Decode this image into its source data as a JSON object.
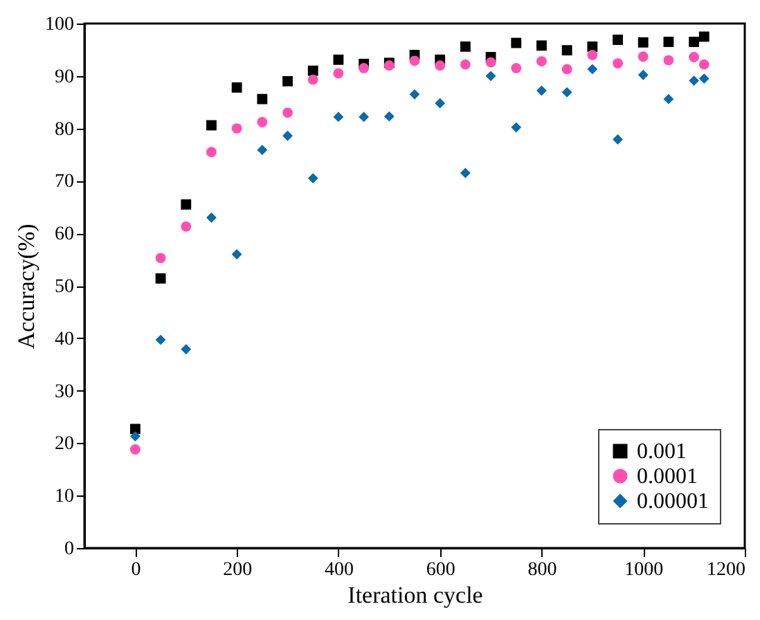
{
  "chart_data": {
    "type": "scatter",
    "xlabel": "Iteration cycle",
    "ylabel": "Accuracy(%)",
    "x": [
      0,
      50,
      100,
      150,
      200,
      250,
      300,
      350,
      400,
      450,
      500,
      550,
      600,
      650,
      700,
      750,
      800,
      850,
      900,
      950,
      1000,
      1050,
      1100,
      1120
    ],
    "series": [
      {
        "name": "0.001",
        "color": "#000000",
        "marker": "square",
        "values": [
          22.7,
          51.4,
          65.5,
          80.6,
          87.8,
          85.6,
          89,
          91,
          93.1,
          92.3,
          92.5,
          94,
          93.1,
          95.6,
          93.6,
          96.3,
          95.8,
          94.9,
          95.6,
          96.9,
          96.4,
          96.5,
          96.5,
          97.5
        ]
      },
      {
        "name": "0.0001",
        "color": "#ff4fb0",
        "marker": "circle",
        "values": [
          18.8,
          55.3,
          61.3,
          75.5,
          80,
          81.2,
          83,
          89.3,
          90.5,
          91.5,
          92,
          92.9,
          92,
          92.2,
          92.6,
          91.5,
          92.8,
          91.3,
          94,
          92.4,
          93.7,
          93,
          93.6,
          92.2
        ]
      },
      {
        "name": "0.00001",
        "color": "#0a6aaa",
        "marker": "diamond",
        "values": [
          21.3,
          39.7,
          37.9,
          63,
          56,
          75.9,
          78.6,
          70.5,
          82.2,
          82.2,
          82.3,
          86.5,
          84.8,
          71.5,
          90,
          80.2,
          87.2,
          86.9,
          91.3,
          77.9,
          90.2,
          85.6,
          89.1,
          89.5
        ]
      }
    ],
    "xlim": [
      -100,
      1200
    ],
    "xticks": [
      0,
      200,
      400,
      600,
      800,
      1000,
      1200
    ],
    "ylim": [
      0,
      100
    ],
    "yticks": [
      0,
      10,
      20,
      30,
      40,
      50,
      60,
      70,
      80,
      90,
      100
    ],
    "grid": false,
    "legend": "bottom right"
  }
}
